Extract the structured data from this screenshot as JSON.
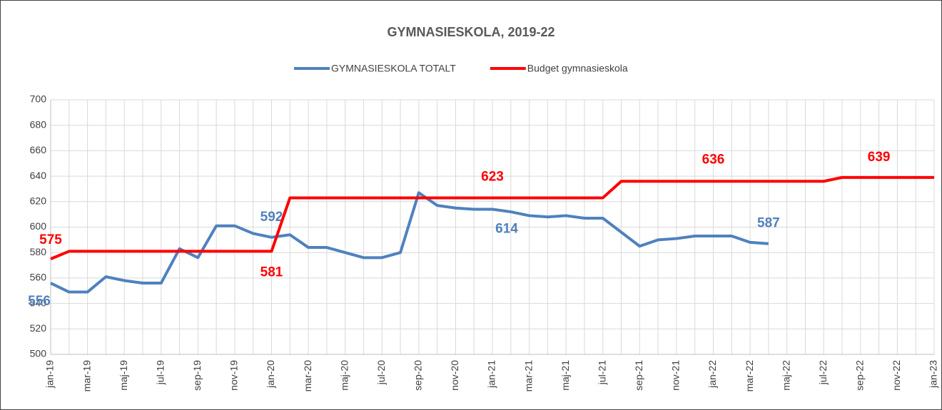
{
  "chart_data": {
    "type": "line",
    "title": "GYMNASIESKOLA, 2019-22",
    "categories": [
      "jan-19",
      null,
      "mar-19",
      null,
      "maj-19",
      null,
      "jul-19",
      null,
      "sep-19",
      null,
      "nov-19",
      null,
      "jan-20",
      null,
      "mar-20",
      null,
      "maj-20",
      null,
      "jul-20",
      null,
      "sep-20",
      null,
      "nov-20",
      null,
      "jan-21",
      null,
      "mar-21",
      null,
      "maj-21",
      null,
      "jul-21",
      null,
      "sep-21",
      null,
      "nov-21",
      null,
      "jan-22",
      null,
      "mar-22",
      null,
      "maj-22",
      null,
      "jul-22",
      null,
      "sep-22",
      null,
      "nov-22",
      null,
      "jan-23"
    ],
    "series": [
      {
        "name": "GYMNASIESKOLA TOTALT",
        "color": "#4f81bd",
        "values": [
          556,
          549,
          549,
          561,
          558,
          556,
          556,
          583,
          576,
          601,
          601,
          595,
          592,
          594,
          584,
          584,
          580,
          576,
          576,
          580,
          627,
          617,
          615,
          614,
          614,
          612,
          609,
          608,
          609,
          607,
          607,
          596,
          585,
          590,
          591,
          593,
          593,
          593,
          588,
          587,
          null,
          null,
          null,
          null,
          null,
          null,
          null,
          null,
          null
        ],
        "value_labels": [
          "556",
          null,
          null,
          null,
          null,
          null,
          null,
          null,
          null,
          null,
          null,
          null,
          "592",
          null,
          null,
          null,
          null,
          null,
          null,
          null,
          null,
          null,
          null,
          null,
          "614",
          null,
          null,
          null,
          null,
          null,
          null,
          null,
          null,
          null,
          null,
          null,
          null,
          null,
          null,
          "587",
          null,
          null,
          null,
          null,
          null,
          null,
          null,
          null,
          null
        ]
      },
      {
        "name": "Budget gymnasieskola",
        "color": "#ff0000",
        "values": [
          575,
          581,
          581,
          581,
          581,
          581,
          581,
          581,
          581,
          581,
          581,
          581,
          581,
          623,
          623,
          623,
          623,
          623,
          623,
          623,
          623,
          623,
          623,
          623,
          623,
          623,
          623,
          623,
          623,
          623,
          623,
          636,
          636,
          636,
          636,
          636,
          636,
          636,
          636,
          636,
          636,
          636,
          636,
          639,
          639,
          639,
          639,
          639,
          639
        ],
        "value_labels": [
          "575",
          null,
          null,
          null,
          null,
          null,
          null,
          null,
          null,
          null,
          null,
          null,
          "581",
          null,
          null,
          null,
          null,
          null,
          null,
          null,
          null,
          null,
          null,
          null,
          "623",
          null,
          null,
          null,
          null,
          null,
          null,
          null,
          null,
          null,
          null,
          null,
          "636",
          null,
          null,
          null,
          null,
          null,
          null,
          null,
          null,
          "639",
          null,
          null,
          null
        ]
      }
    ],
    "ylim": [
      500,
      700
    ],
    "yticks": [
      500,
      520,
      540,
      560,
      580,
      600,
      620,
      640,
      660,
      680,
      700
    ],
    "grid": true,
    "legend": "top"
  }
}
